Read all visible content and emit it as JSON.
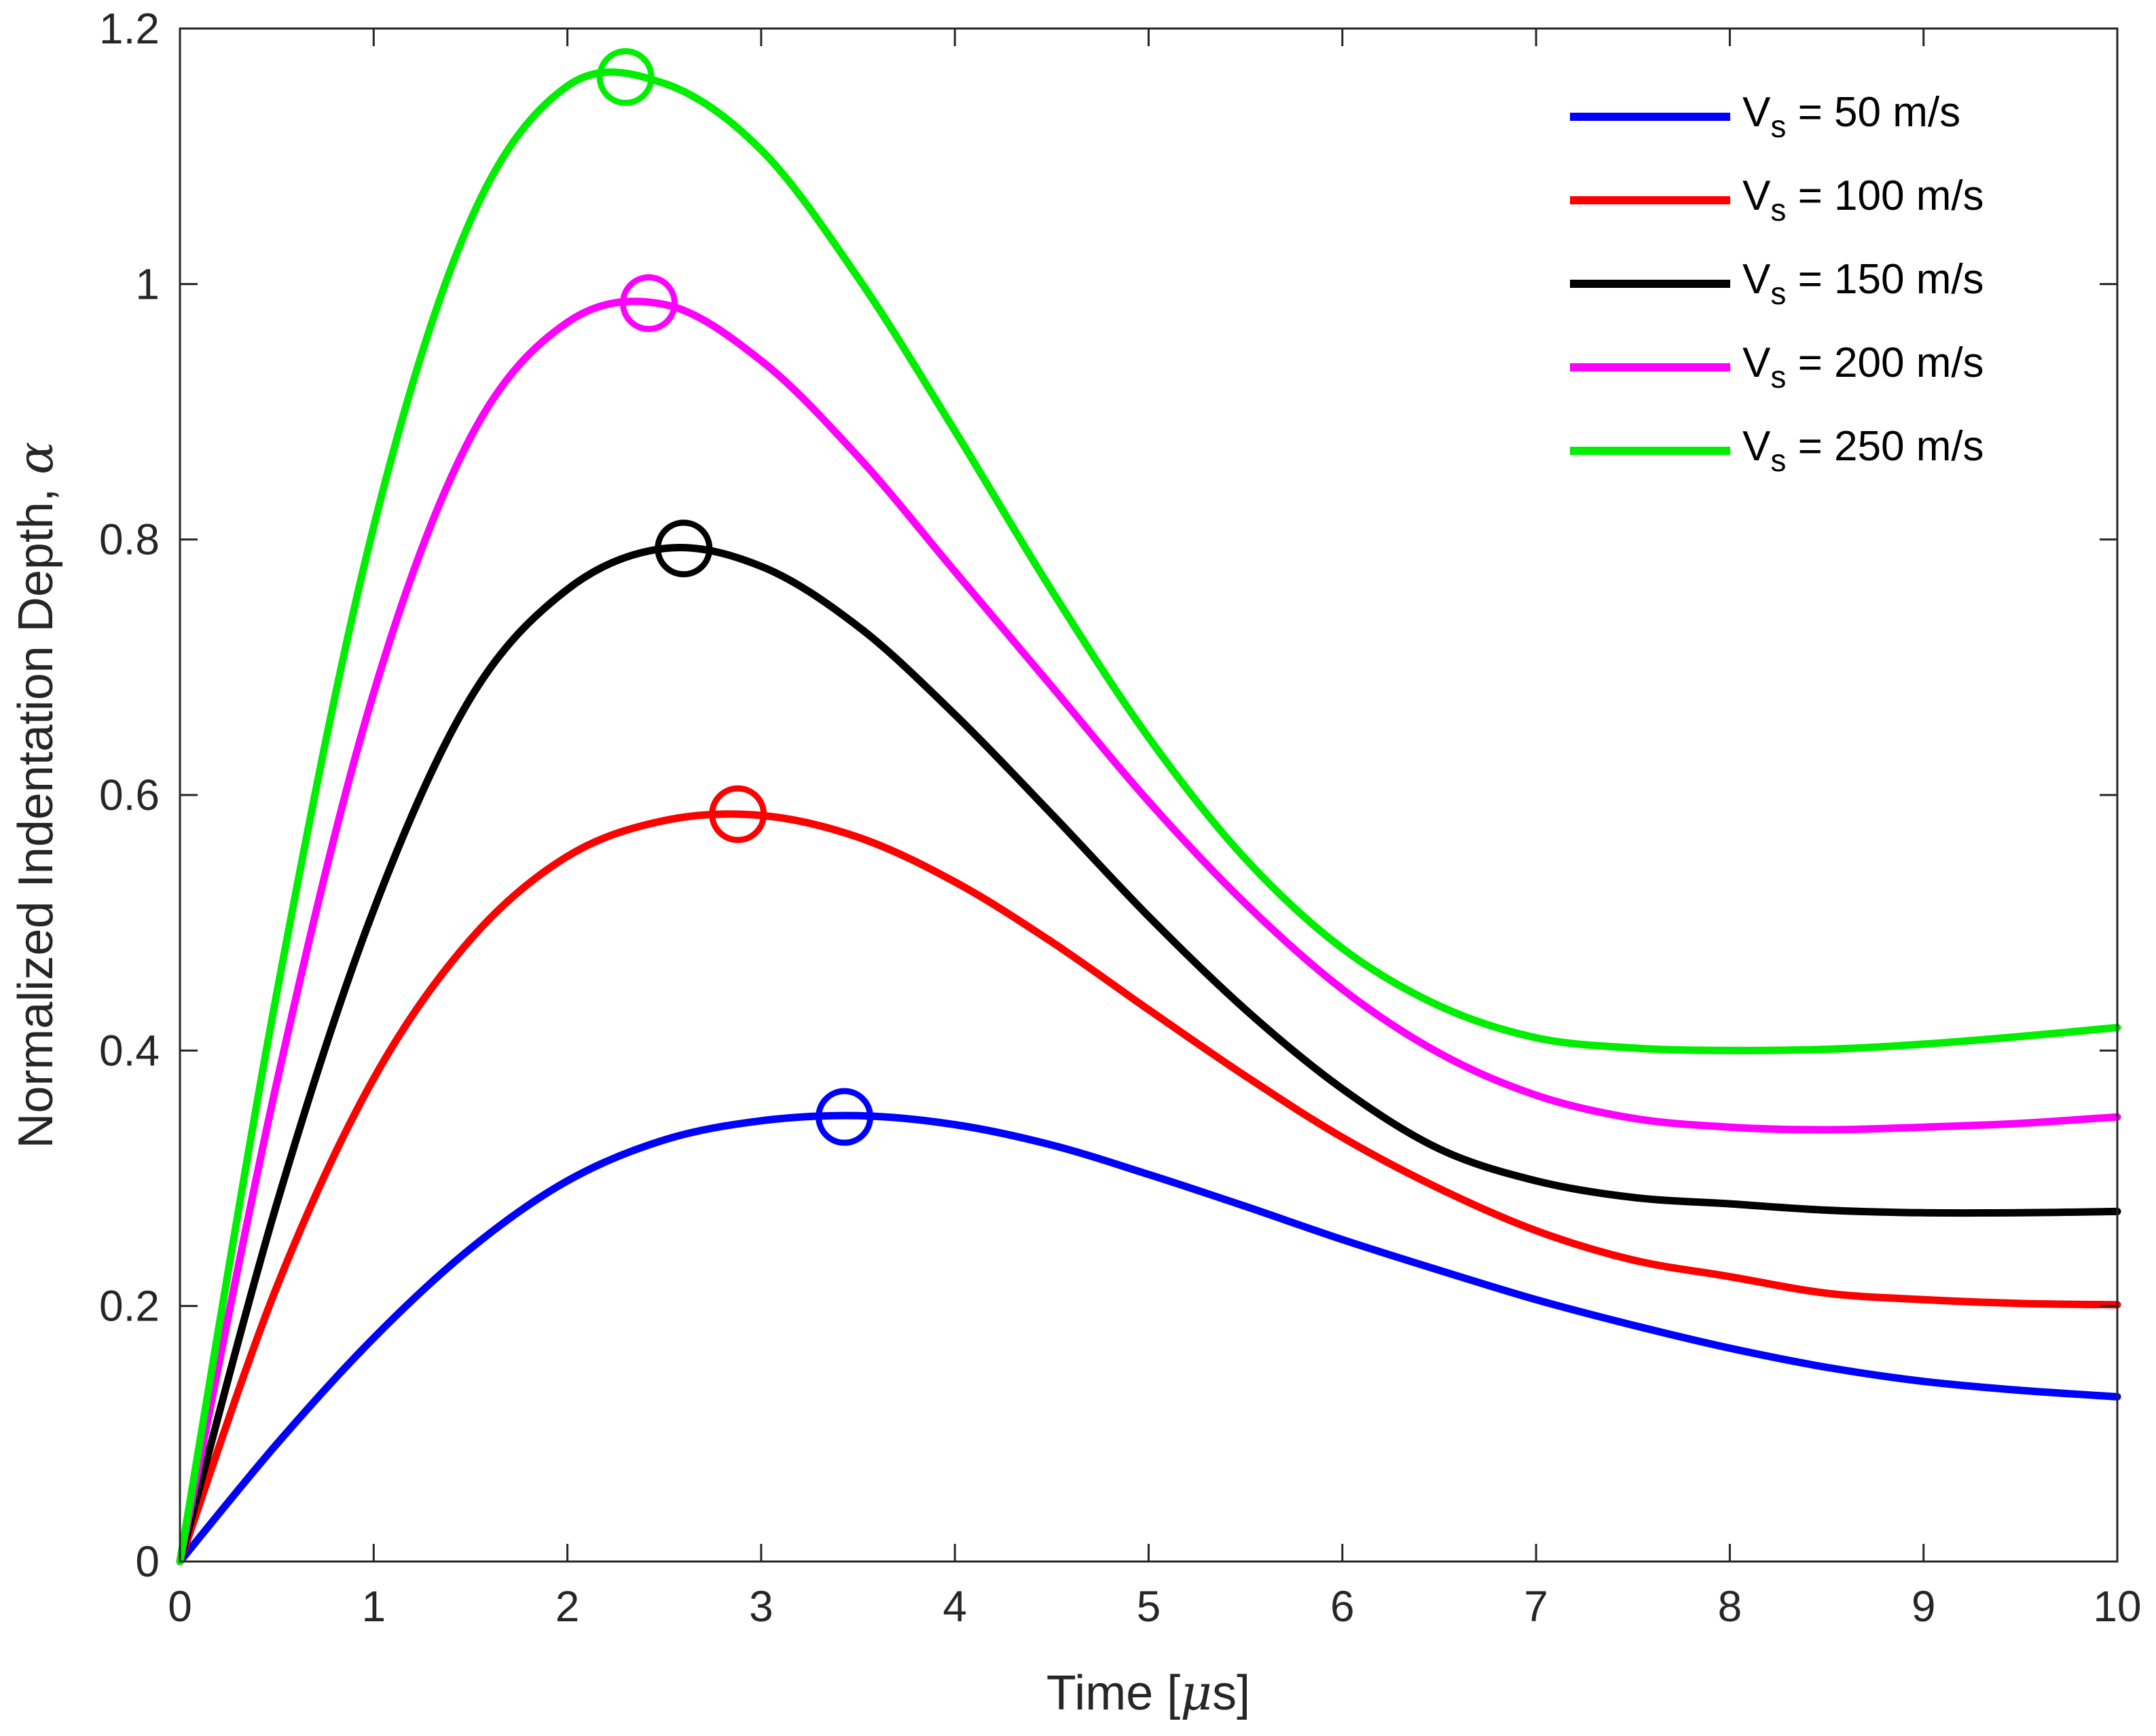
{
  "chart_data": {
    "type": "line",
    "xlabel_prefix": "Time [",
    "xlabel_symbol": "μ",
    "xlabel_suffix": "s]",
    "ylabel_prefix": "Normalized Indentation Depth, ",
    "ylabel_symbol": "α",
    "xlim": [
      0,
      10
    ],
    "ylim": [
      0,
      1.2
    ],
    "xticks": [
      "0",
      "1",
      "2",
      "3",
      "4",
      "5",
      "6",
      "7",
      "8",
      "9",
      "10"
    ],
    "yticks": [
      "0",
      "0.2",
      "0.4",
      "0.6",
      "0.8",
      "1",
      "1.2"
    ],
    "x": [
      0,
      0.5,
      1,
      1.5,
      2,
      2.5,
      3,
      3.5,
      4,
      4.5,
      5,
      5.5,
      6,
      6.5,
      7,
      7.5,
      8,
      8.5,
      9,
      9.5,
      10
    ],
    "series": [
      {
        "legend_prefix": "V",
        "legend_sub": "s",
        "legend_suffix": " = 50 m/s",
        "color": "#0000ff",
        "values": [
          0,
          0.092,
          0.175,
          0.245,
          0.298,
          0.33,
          0.345,
          0.349,
          0.342,
          0.326,
          0.303,
          0.278,
          0.252,
          0.228,
          0.205,
          0.185,
          0.167,
          0.152,
          0.141,
          0.134,
          0.129
        ],
        "peak": [
          3.43,
          0.348
        ]
      },
      {
        "legend_prefix": "V",
        "legend_sub": "s",
        "legend_suffix": " = 100 m/s",
        "color": "#ff0000",
        "values": [
          0,
          0.215,
          0.378,
          0.487,
          0.552,
          0.58,
          0.584,
          0.567,
          0.532,
          0.485,
          0.432,
          0.38,
          0.332,
          0.292,
          0.259,
          0.236,
          0.223,
          0.21,
          0.205,
          0.202,
          0.201
        ],
        "peak": [
          2.88,
          0.585
        ]
      },
      {
        "legend_prefix": "V",
        "legend_sub": "s",
        "legend_suffix": " = 150 m/s",
        "color": "#000000",
        "values": [
          0,
          0.28,
          0.51,
          0.676,
          0.761,
          0.793,
          0.779,
          0.732,
          0.663,
          0.585,
          0.505,
          0.432,
          0.37,
          0.323,
          0.298,
          0.285,
          0.28,
          0.275,
          0.273,
          0.273,
          0.274
        ],
        "peak": [
          2.6,
          0.793
        ]
      },
      {
        "legend_prefix": "V",
        "legend_sub": "s",
        "legend_suffix": " = 200 m/s",
        "color": "#ff00ff",
        "values": [
          0,
          0.375,
          0.68,
          0.88,
          0.97,
          0.984,
          0.94,
          0.865,
          0.775,
          0.685,
          0.595,
          0.515,
          0.448,
          0.398,
          0.365,
          0.347,
          0.34,
          0.338,
          0.34,
          0.343,
          0.348
        ],
        "peak": [
          2.42,
          0.985
        ]
      },
      {
        "legend_prefix": "V",
        "legend_sub": "s",
        "legend_suffix": " = 250 m/s",
        "color": "#00ee00",
        "values": [
          0,
          0.445,
          0.81,
          1.05,
          1.155,
          1.157,
          1.105,
          1.005,
          0.885,
          0.76,
          0.645,
          0.55,
          0.48,
          0.435,
          0.41,
          0.402,
          0.4,
          0.401,
          0.405,
          0.411,
          0.418
        ],
        "peak": [
          2.3,
          1.162
        ]
      }
    ],
    "grid": false,
    "legend_position": "top-right"
  }
}
